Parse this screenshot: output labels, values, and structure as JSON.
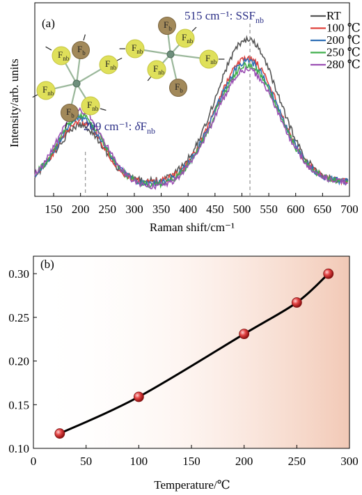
{
  "chart_data": [
    {
      "panel": "(a)",
      "type": "line",
      "xlabel": "Raman shift/cm⁻¹",
      "ylabel": "Intensity/arb. units",
      "xlim": [
        115,
        700
      ],
      "x_ticks": [
        "150",
        "200",
        "250",
        "300",
        "350",
        "400",
        "450",
        "500",
        "550",
        "600",
        "650",
        "700"
      ],
      "legend": {
        "placement": "top-right",
        "entries": [
          "RT",
          "100 ℃",
          "200 ℃",
          "250 ℃",
          "280 ℃"
        ]
      },
      "series": [
        {
          "name": "RT",
          "color": "#555555",
          "amp1": 0.4,
          "amp2": 1.0
        },
        {
          "name": "100 ℃",
          "color": "#e0433d",
          "amp1": 0.43,
          "amp2": 0.87
        },
        {
          "name": "200 ℃",
          "color": "#2f6fb5",
          "amp1": 0.45,
          "amp2": 0.85
        },
        {
          "name": "250 ℃",
          "color": "#3fae4a",
          "amp1": 0.47,
          "amp2": 0.82
        },
        {
          "name": "280 ℃",
          "color": "#9b4fb3",
          "amp1": 0.5,
          "amp2": 0.79
        }
      ],
      "peaks": [
        {
          "x": 209,
          "label_main": "209 cm⁻¹: ",
          "label_italic": "δ",
          "label_rest": "F",
          "label_sub": "nb"
        },
        {
          "x": 515,
          "label_main": "515 cm⁻¹: SSF",
          "label_sub": "nb"
        }
      ],
      "inset_labels": {
        "nonbridging": "F",
        "nonbridging_sub": "nb",
        "bridging": "F",
        "bridging_sub": "b"
      },
      "grid": false
    },
    {
      "panel": "(b)",
      "type": "line",
      "xlabel": "Temperature/℃",
      "ylabel": "",
      "xlim": [
        0,
        300
      ],
      "ylim": [
        0.1,
        0.32
      ],
      "x_ticks": [
        0,
        50,
        100,
        150,
        200,
        250,
        300
      ],
      "y_ticks": [
        "0.10",
        "0.15",
        "0.20",
        "0.25",
        "0.30"
      ],
      "x": [
        25,
        100,
        200,
        250,
        280
      ],
      "values": [
        0.117,
        0.159,
        0.231,
        0.267,
        0.3
      ],
      "grid": false
    }
  ]
}
